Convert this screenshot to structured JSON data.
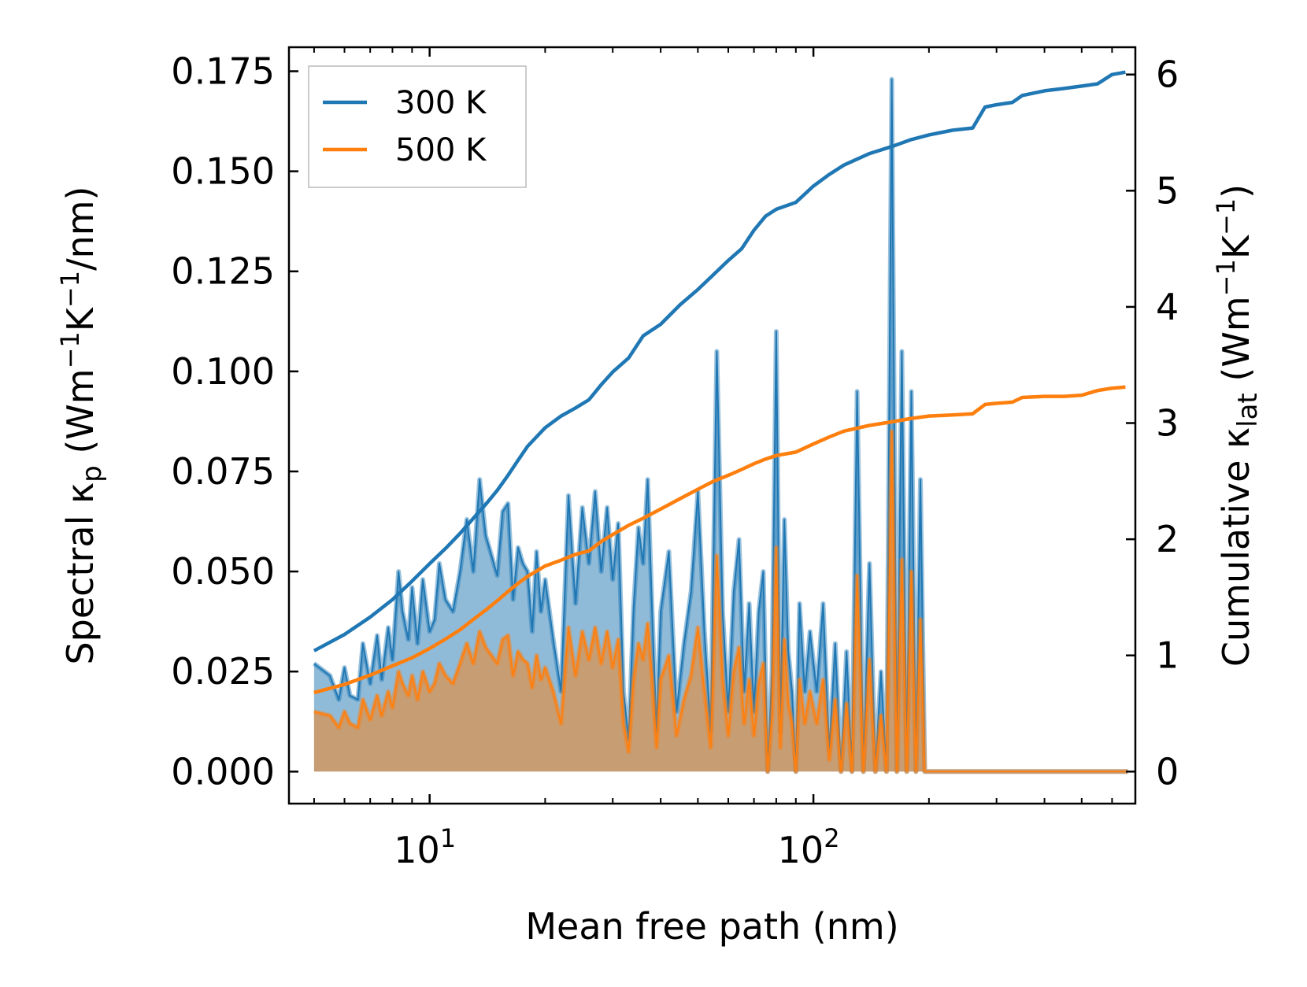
{
  "chart_data": {
    "type": "area+line",
    "xlabel": "Mean free path (nm)",
    "ylabel_left": {
      "prefix": "Spectral κ",
      "sub": "p",
      "unit_prefix": " (Wm",
      "exp1": "−1",
      "mid": "K",
      "exp2": "−1",
      "suffix": "/nm)"
    },
    "ylabel_right": {
      "prefix": "Cumulative κ",
      "sub": "lat",
      "unit_prefix": " (Wm",
      "exp1": "−1",
      "mid": "K",
      "exp2": "−1",
      "suffix": ")"
    },
    "x_scale": "log",
    "xlim": [
      4.3,
      690
    ],
    "ylim_left": [
      -0.008,
      0.181
    ],
    "ylim_right": [
      -0.2756,
      6.235
    ],
    "x_ticks": [
      {
        "value": 10,
        "base": "10",
        "exp": "1"
      },
      {
        "value": 100,
        "base": "10",
        "exp": "2"
      }
    ],
    "y_ticks_left": [
      {
        "value": 0,
        "label": "0.000"
      },
      {
        "value": 0.025,
        "label": "0.025"
      },
      {
        "value": 0.05,
        "label": "0.050"
      },
      {
        "value": 0.075,
        "label": "0.075"
      },
      {
        "value": 0.1,
        "label": "0.100"
      },
      {
        "value": 0.125,
        "label": "0.125"
      },
      {
        "value": 0.15,
        "label": "0.150"
      },
      {
        "value": 0.175,
        "label": "0.175"
      }
    ],
    "y_ticks_right": [
      {
        "value": 0,
        "label": "0"
      },
      {
        "value": 1,
        "label": "1"
      },
      {
        "value": 2,
        "label": "2"
      },
      {
        "value": 3,
        "label": "3"
      },
      {
        "value": 4,
        "label": "4"
      },
      {
        "value": 5,
        "label": "5"
      },
      {
        "value": 6,
        "label": "6"
      }
    ],
    "legend": {
      "position": "upper-left",
      "entries": [
        {
          "label": "300 K",
          "color": "#1f77b4"
        },
        {
          "label": "500 K",
          "color": "#ff7f0e"
        }
      ]
    },
    "series": [
      {
        "name": "300 K",
        "color": "#1f77b4",
        "kind": "spectral",
        "axis": "left",
        "x": [
          5,
          5.5,
          5.8,
          6,
          6.2,
          6.5,
          6.7,
          7,
          7.3,
          7.5,
          7.8,
          8,
          8.3,
          8.5,
          8.8,
          9,
          9.3,
          9.6,
          10,
          10.3,
          10.6,
          11,
          11.5,
          12,
          12.5,
          13,
          13.5,
          14,
          14.5,
          15,
          15.5,
          16,
          16.5,
          17,
          17.5,
          18,
          18.5,
          19,
          19.5,
          20,
          21,
          22,
          23,
          24,
          25,
          26,
          27,
          28,
          29,
          30,
          31,
          32,
          33,
          34,
          35,
          36,
          37,
          38,
          39,
          40,
          42,
          44,
          46,
          48,
          50,
          52,
          54,
          56,
          58,
          60,
          62,
          64,
          66,
          68,
          70,
          72,
          74,
          76,
          78,
          80,
          82,
          84,
          86,
          88,
          90,
          92,
          95,
          98,
          102,
          106,
          110,
          114,
          118,
          122,
          126,
          130,
          135,
          140,
          145,
          150,
          155,
          160,
          165,
          170,
          175,
          180,
          185,
          190,
          195,
          200,
          210,
          220,
          230,
          240,
          250,
          260,
          270,
          278,
          286,
          295,
          350,
          360,
          370,
          460,
          480,
          500,
          520,
          540,
          560,
          580,
          600,
          620,
          640,
          660
        ],
        "values": [
          0.027,
          0.024,
          0.018,
          0.026,
          0.019,
          0.018,
          0.032,
          0.022,
          0.034,
          0.023,
          0.036,
          0.028,
          0.05,
          0.04,
          0.033,
          0.046,
          0.032,
          0.048,
          0.035,
          0.038,
          0.052,
          0.043,
          0.04,
          0.05,
          0.063,
          0.05,
          0.073,
          0.059,
          0.054,
          0.049,
          0.065,
          0.067,
          0.043,
          0.056,
          0.052,
          0.05,
          0.035,
          0.055,
          0.04,
          0.048,
          0.033,
          0.02,
          0.069,
          0.042,
          0.066,
          0.052,
          0.07,
          0.05,
          0.066,
          0.048,
          0.062,
          0.02,
          0.008,
          0.041,
          0.061,
          0.052,
          0.073,
          0.04,
          0.01,
          0.04,
          0.055,
          0.015,
          0.032,
          0.045,
          0.07,
          0.035,
          0.01,
          0.105,
          0.04,
          0.015,
          0.045,
          0.058,
          0.02,
          0.042,
          0.015,
          0.04,
          0.05,
          0.0,
          0.025,
          0.11,
          0.01,
          0.063,
          0.03,
          0.02,
          0.0,
          0.042,
          0.02,
          0.035,
          0.02,
          0.042,
          0.005,
          0.032,
          0.0,
          0.03,
          0.0,
          0.095,
          0.0,
          0.052,
          0.0,
          0.025,
          0.0,
          0.173,
          0.0,
          0.105,
          0.0,
          0.095,
          0.0,
          0.073,
          0.0,
          0.0,
          0.0,
          0.0,
          0.0,
          0.0,
          0.0,
          0.0,
          0.0,
          0.0,
          0.0,
          0.0,
          0.0,
          0.0,
          0.0,
          0.0,
          0.0,
          0.0,
          0.0,
          0.0,
          0.0,
          0.0,
          0.0,
          0.0,
          0.0,
          0.0
        ]
      },
      {
        "name": "500 K",
        "color": "#ff7f0e",
        "kind": "spectral",
        "axis": "left",
        "x": [
          5,
          5.5,
          5.8,
          6,
          6.2,
          6.5,
          6.7,
          7,
          7.3,
          7.5,
          7.8,
          8,
          8.3,
          8.5,
          8.8,
          9,
          9.3,
          9.6,
          10,
          10.3,
          10.6,
          11,
          11.5,
          12,
          12.5,
          13,
          13.5,
          14,
          14.5,
          15,
          15.5,
          16,
          16.5,
          17,
          17.5,
          18,
          18.5,
          19,
          19.5,
          20,
          21,
          22,
          23,
          24,
          25,
          26,
          27,
          28,
          29,
          30,
          31,
          32,
          33,
          34,
          35,
          36,
          37,
          38,
          39,
          40,
          42,
          44,
          46,
          48,
          50,
          52,
          54,
          56,
          58,
          60,
          62,
          64,
          66,
          68,
          70,
          72,
          74,
          76,
          78,
          80,
          82,
          84,
          86,
          88,
          90,
          92,
          95,
          98,
          102,
          106,
          110,
          114,
          118,
          122,
          126,
          130,
          135,
          140,
          145,
          150,
          155,
          160,
          165,
          170,
          175,
          180,
          185,
          190,
          195,
          200,
          210,
          220,
          230,
          240,
          250,
          260,
          270,
          278,
          286,
          295,
          350,
          360,
          370,
          460,
          480,
          500,
          520,
          540,
          560,
          580,
          600,
          620,
          640,
          660
        ],
        "values": [
          0.015,
          0.014,
          0.011,
          0.015,
          0.012,
          0.011,
          0.018,
          0.013,
          0.019,
          0.014,
          0.02,
          0.016,
          0.025,
          0.022,
          0.019,
          0.024,
          0.018,
          0.025,
          0.02,
          0.022,
          0.027,
          0.024,
          0.022,
          0.027,
          0.032,
          0.027,
          0.035,
          0.031,
          0.029,
          0.027,
          0.033,
          0.034,
          0.024,
          0.03,
          0.028,
          0.027,
          0.021,
          0.029,
          0.023,
          0.026,
          0.02,
          0.012,
          0.036,
          0.024,
          0.035,
          0.028,
          0.036,
          0.027,
          0.035,
          0.026,
          0.033,
          0.012,
          0.005,
          0.023,
          0.032,
          0.028,
          0.037,
          0.023,
          0.006,
          0.023,
          0.029,
          0.009,
          0.018,
          0.024,
          0.036,
          0.02,
          0.006,
          0.054,
          0.023,
          0.009,
          0.025,
          0.031,
          0.012,
          0.023,
          0.009,
          0.022,
          0.027,
          0.0,
          0.014,
          0.056,
          0.006,
          0.033,
          0.017,
          0.012,
          0.0,
          0.023,
          0.012,
          0.02,
          0.012,
          0.023,
          0.003,
          0.018,
          0.0,
          0.017,
          0.0,
          0.049,
          0.0,
          0.028,
          0.0,
          0.014,
          0.0,
          0.085,
          0.0,
          0.053,
          0.0,
          0.05,
          0.0,
          0.038,
          0.0,
          0.0,
          0.0,
          0.0,
          0.0,
          0.0,
          0.0,
          0.0,
          0.0,
          0.0,
          0.0,
          0.0,
          0.0,
          0.0,
          0.0,
          0.0,
          0.0,
          0.0,
          0.0,
          0.0,
          0.0,
          0.0,
          0.0,
          0.0,
          0.0,
          0.0
        ]
      },
      {
        "name": "300 K",
        "color": "#1f77b4",
        "kind": "cumulative",
        "axis": "right",
        "x": [
          5,
          6,
          7,
          8,
          9,
          10,
          11,
          12,
          13,
          14,
          15,
          16,
          17,
          18,
          20,
          22,
          24,
          26,
          28,
          30,
          33,
          36,
          40,
          45,
          50,
          55,
          60,
          65,
          70,
          75,
          80,
          90,
          100,
          110,
          120,
          140,
          160,
          180,
          200,
          230,
          260,
          280,
          300,
          330,
          350,
          400,
          450,
          500,
          550,
          600,
          650
        ],
        "values": [
          1.04,
          1.18,
          1.33,
          1.48,
          1.64,
          1.79,
          1.92,
          2.05,
          2.18,
          2.3,
          2.42,
          2.55,
          2.68,
          2.8,
          2.96,
          3.06,
          3.13,
          3.2,
          3.33,
          3.44,
          3.56,
          3.75,
          3.85,
          4.02,
          4.15,
          4.28,
          4.4,
          4.5,
          4.66,
          4.78,
          4.84,
          4.9,
          5.04,
          5.14,
          5.22,
          5.32,
          5.38,
          5.44,
          5.48,
          5.52,
          5.54,
          5.72,
          5.74,
          5.76,
          5.82,
          5.86,
          5.88,
          5.9,
          5.92,
          6.0,
          6.02
        ]
      },
      {
        "name": "500 K",
        "color": "#ff7f0e",
        "kind": "cumulative",
        "axis": "right",
        "x": [
          5,
          6,
          7,
          8,
          9,
          10,
          11,
          12,
          13,
          14,
          15,
          16,
          17,
          18,
          20,
          22,
          24,
          26,
          28,
          30,
          33,
          36,
          40,
          45,
          50,
          55,
          60,
          65,
          70,
          75,
          80,
          90,
          100,
          110,
          120,
          140,
          160,
          180,
          200,
          230,
          260,
          280,
          300,
          330,
          350,
          400,
          450,
          500,
          550,
          600,
          650
        ],
        "values": [
          0.68,
          0.75,
          0.83,
          0.91,
          0.98,
          1.06,
          1.14,
          1.22,
          1.31,
          1.39,
          1.47,
          1.55,
          1.62,
          1.68,
          1.77,
          1.82,
          1.87,
          1.9,
          1.98,
          2.04,
          2.12,
          2.18,
          2.26,
          2.35,
          2.43,
          2.5,
          2.55,
          2.6,
          2.65,
          2.69,
          2.72,
          2.75,
          2.82,
          2.88,
          2.93,
          2.98,
          3.01,
          3.04,
          3.06,
          3.07,
          3.08,
          3.16,
          3.17,
          3.18,
          3.22,
          3.23,
          3.23,
          3.24,
          3.28,
          3.3,
          3.31
        ]
      }
    ]
  }
}
